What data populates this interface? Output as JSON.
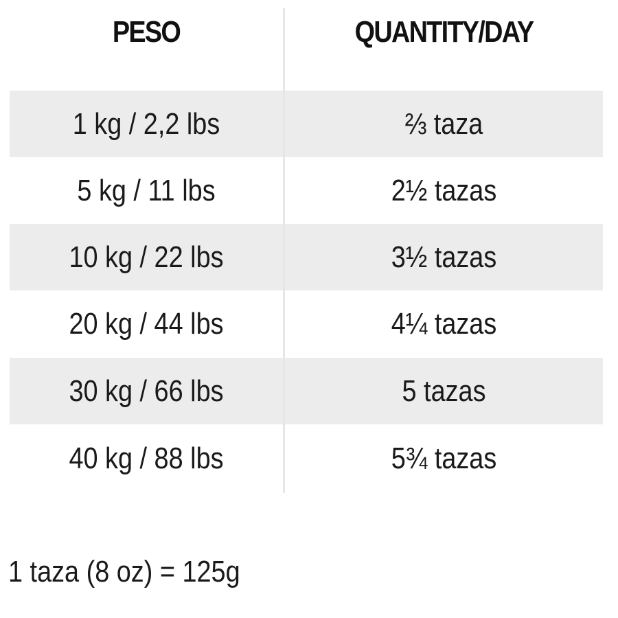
{
  "table": {
    "headers": {
      "weight": "PESO",
      "quantity": "QUANTITY/DAY"
    },
    "rows": [
      {
        "weight": "1 kg / 2,2 lbs",
        "quantity": "⅔ taza",
        "shaded": true
      },
      {
        "weight": "5 kg / 11 lbs",
        "quantity": "2½ tazas",
        "shaded": false
      },
      {
        "weight": "10 kg / 22 lbs",
        "quantity": "3½ tazas",
        "shaded": true
      },
      {
        "weight": "20 kg / 44 lbs",
        "quantity": "4¼ tazas",
        "shaded": false
      },
      {
        "weight": "30 kg / 66 lbs",
        "quantity": "5 tazas",
        "shaded": true
      },
      {
        "weight": "40 kg / 88 lbs",
        "quantity": "5¾ tazas",
        "shaded": false
      }
    ]
  },
  "footnote": "1 taza (8 oz) = 125g"
}
